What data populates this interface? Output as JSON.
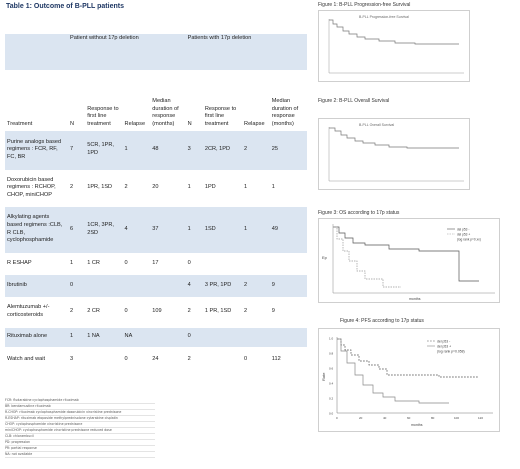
{
  "table_title": "Table 1: Outcome of B-PLL patients",
  "table": {
    "group_headers": {
      "without": "Patient without 17p deletion",
      "with": "Patients with 17p deletion"
    },
    "columns": [
      "Treatment",
      "N",
      "Response to first line treatment",
      "Relapse",
      "Median duration of response (months)",
      "N",
      "Response to first line treatment",
      "Relapse",
      "Median duration of response (months)"
    ],
    "rows": [
      [
        "Purine analogs based regimens : FCR, RF, FC, BR",
        "7",
        "5CR, 1PR, 1PD",
        "1",
        "48",
        "3",
        "2CR, 1PD",
        "2",
        "25"
      ],
      [
        "Doxorubicin based regimens : RCHOP, CHOP, miniCHOP",
        "2",
        "1PR, 1SD",
        "2",
        "20",
        "1",
        "1PD",
        "1",
        "1"
      ],
      [
        "Alkylating agents based regimens :CLB, R CLB, cyclophosphamide",
        "6",
        "1CR, 3PR, 2SD",
        "4",
        "37",
        "1",
        "1SD",
        "1",
        "49"
      ],
      [
        "R ESHAP",
        "1",
        "1 CR",
        "0",
        "17",
        "0",
        "",
        "",
        ""
      ],
      [
        "Ibrutinib",
        "0",
        "",
        "",
        "",
        "4",
        "3 PR, 1PD",
        "2",
        "9"
      ],
      [
        "Alemtuzumab +/- corticosteroids",
        "2",
        "2 CR",
        "0",
        "109",
        "2",
        "1 PR, 1SD",
        "2",
        "9"
      ],
      [
        "Rituximab alone",
        "1",
        "1 NA",
        "NA",
        "",
        "0",
        "",
        "",
        ""
      ],
      [
        "Watch and wait",
        "3",
        "",
        "0",
        "24",
        "2",
        "",
        "0",
        "112"
      ]
    ]
  },
  "abbreviations": [
    "FCR: fludarabine cyclophosphamide rituximab",
    "BR: bendamustine rituximab",
    "R-CHOP: rituximab cyclophosphamide doxorubicin vincristine prednisone",
    "R-ESHAP: rituximab etoposide methylprednisolone cytarabine cisplatin",
    "CHOP: cyclophosphamide vincristine prednisone",
    "miniCHOP: cyclophosphamide vincristine prednisone reduced dose",
    "CLB: chlorambucil",
    "PD: progression",
    "PR: partial response",
    "NA: not available"
  ],
  "figures": {
    "fig1": {
      "caption": "Figure 1: B-PLL Progression-free Survival",
      "inner_title": "B-PLL Progression-free Survival"
    },
    "fig2": {
      "caption": "Figure 2: B-PLL Overall Survival",
      "inner_title": "B-PLL Overall Survival"
    },
    "fig3": {
      "caption": "Figure 3: OS according to 17p status",
      "legend": [
        "del p53 -",
        "del p53 +",
        "(log rank p=0.xx)"
      ],
      "ylabel": "Ep",
      "xlabel": "months"
    },
    "fig4": {
      "caption": "Figure 4: PFS according to 17p status",
      "legend": [
        "del p53 -",
        "del p53 +",
        "(log rank p=0.058)"
      ],
      "ylabel": "Rate",
      "xlabel": "months",
      "xticks": [
        "0",
        "20",
        "40",
        "60",
        "80",
        "100",
        "120"
      ],
      "yticks": [
        "0.0",
        "0.2",
        "0.4",
        "0.6",
        "0.8",
        "1.0"
      ]
    }
  }
}
